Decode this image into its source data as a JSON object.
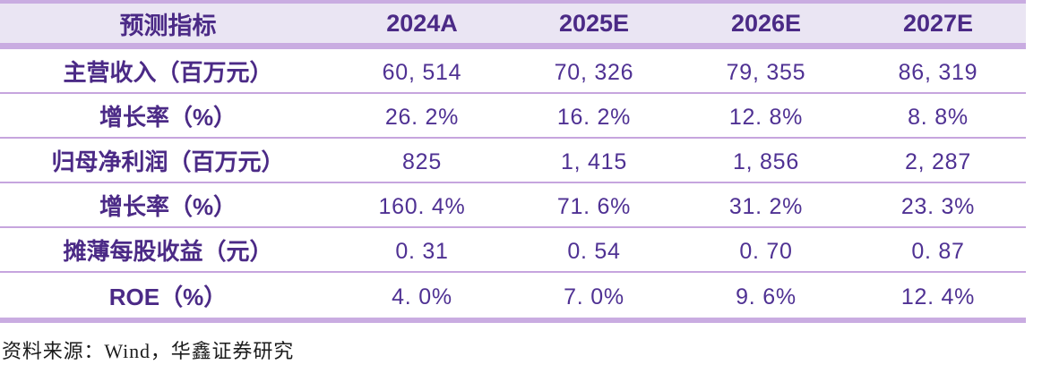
{
  "table": {
    "header": {
      "indicator": "预测指标",
      "years": [
        "2024A",
        "2025E",
        "2026E",
        "2027E"
      ]
    },
    "rows": [
      {
        "label": "主营收入（百万元）",
        "values": [
          "60, 514",
          "70, 326",
          "79, 355",
          "86, 319"
        ]
      },
      {
        "label": "增长率（%）",
        "values": [
          "26. 2%",
          "16. 2%",
          "12. 8%",
          "8. 8%"
        ]
      },
      {
        "label": "归母净利润（百万元）",
        "values": [
          "825",
          "1, 415",
          "1, 856",
          "2, 287"
        ]
      },
      {
        "label": "增长率（%）",
        "values": [
          "160. 4%",
          "71. 6%",
          "31. 2%",
          "23. 3%"
        ]
      },
      {
        "label": "摊薄每股收益（元）",
        "values": [
          "0. 31",
          "0. 54",
          "0. 70",
          "0. 87"
        ]
      },
      {
        "label": "ROE（%）",
        "values": [
          "4. 0%",
          "7. 0%",
          "9. 6%",
          "12. 4%"
        ]
      }
    ]
  },
  "footer": {
    "source_note": "资料来源：Wind，华鑫证券研究"
  },
  "colors": {
    "header_background": "#eae5f3",
    "thick_rule": "#c9ace1",
    "thin_rule": "#c6a5de",
    "text_purple": "#4b2a86",
    "value_purple": "#4f3193",
    "footer_text": "#1c1c1c"
  }
}
